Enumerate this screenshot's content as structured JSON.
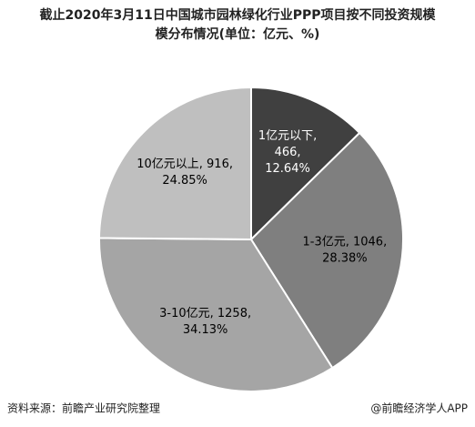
{
  "chart_data": {
    "type": "pie",
    "title_lines": [
      "截止2020年3月11日中国城市园林绿化行业PPP项目按不同投资规模",
      "模分布情况(单位：亿元、%)"
    ],
    "categories": [
      "1亿元以下",
      "1-3亿元",
      "3-10亿元",
      "10亿元以上"
    ],
    "values": [
      466,
      1046,
      1258,
      916
    ],
    "percents": [
      12.64,
      28.38,
      34.13,
      24.85
    ],
    "value_labels": [
      [
        "1亿元以下,",
        "466,",
        "12.64%"
      ],
      [
        "1-3亿元, 1046,",
        "28.38%"
      ],
      [
        "3-10亿元, 1258,",
        "34.13%"
      ],
      [
        "10亿元以上, 916,",
        "24.85%"
      ]
    ],
    "colors": [
      "#404040",
      "#7f7f7f",
      "#a5a5a5",
      "#bfbfbf"
    ],
    "label_colors": [
      "#ffffff",
      "#000000",
      "#000000",
      "#000000"
    ],
    "start_angle": 0,
    "direction": "clockwise",
    "source": "资料来源：前瞻产业研究院整理",
    "credit": "@前瞻经济学人APP"
  }
}
